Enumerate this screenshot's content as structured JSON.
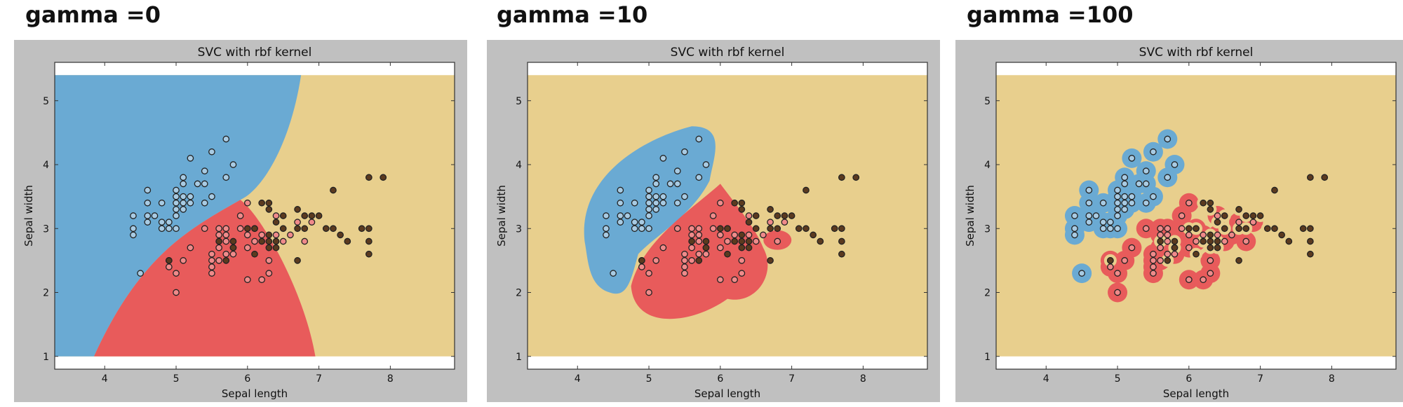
{
  "colors": {
    "panel_bg": "#c0c0c0",
    "class_setosa": "#6aaad3",
    "class_versicolor": "#e85b5b",
    "class_virginica": "#e8cf8d",
    "setosa_point": "#a8cbe3",
    "versicolor_point": "#ef8a8a",
    "virginica_point": "#5b3a1f",
    "point_edge": "#222222"
  },
  "headings": [
    "gamma =0",
    "gamma =10",
    "gamma =100"
  ],
  "chart_data": [
    {
      "type": "scatter",
      "title": "SVC with rbf kernel",
      "xlabel": "Sepal length",
      "ylabel": "Sepal width",
      "xlim": [
        3.3,
        8.9
      ],
      "ylim": [
        0.8,
        5.6
      ],
      "xticks": [
        4,
        5,
        6,
        7,
        8
      ],
      "yticks": [
        1,
        2,
        3,
        4,
        5
      ],
      "grid": false,
      "decision_regions": "smooth boundaries: setosa upper-left, versicolor lower-middle, virginica right",
      "series": [
        {
          "color": "#a8cbe3",
          "points": [
            [
              4.4,
              3.0
            ],
            [
              4.4,
              3.2
            ],
            [
              4.4,
              2.9
            ],
            [
              4.5,
              2.3
            ],
            [
              4.6,
              3.1
            ],
            [
              4.6,
              3.4
            ],
            [
              4.6,
              3.6
            ],
            [
              4.6,
              3.2
            ],
            [
              4.7,
              3.2
            ],
            [
              4.8,
              3.0
            ],
            [
              4.8,
              3.4
            ],
            [
              4.8,
              3.1
            ],
            [
              4.9,
              3.0
            ],
            [
              4.9,
              3.1
            ],
            [
              5.0,
              3.0
            ],
            [
              5.0,
              3.2
            ],
            [
              5.0,
              3.3
            ],
            [
              5.0,
              3.4
            ],
            [
              5.0,
              3.5
            ],
            [
              5.0,
              3.6
            ],
            [
              5.1,
              3.3
            ],
            [
              5.1,
              3.4
            ],
            [
              5.1,
              3.5
            ],
            [
              5.1,
              3.7
            ],
            [
              5.1,
              3.8
            ],
            [
              5.2,
              3.4
            ],
            [
              5.2,
              3.5
            ],
            [
              5.2,
              4.1
            ],
            [
              5.3,
              3.7
            ],
            [
              5.4,
              3.4
            ],
            [
              5.4,
              3.7
            ],
            [
              5.4,
              3.9
            ],
            [
              5.5,
              3.5
            ],
            [
              5.5,
              4.2
            ],
            [
              5.7,
              3.8
            ],
            [
              5.7,
              4.4
            ],
            [
              5.8,
              4.0
            ]
          ]
        },
        {
          "color": "#ef8a8a",
          "points": [
            [
              4.9,
              2.4
            ],
            [
              4.9,
              2.5
            ],
            [
              5.0,
              2.0
            ],
            [
              5.0,
              2.3
            ],
            [
              5.1,
              2.5
            ],
            [
              5.2,
              2.7
            ],
            [
              5.4,
              3.0
            ],
            [
              5.5,
              2.3
            ],
            [
              5.5,
              2.4
            ],
            [
              5.5,
              2.5
            ],
            [
              5.5,
              2.6
            ],
            [
              5.6,
              2.5
            ],
            [
              5.6,
              2.7
            ],
            [
              5.6,
              2.9
            ],
            [
              5.6,
              3.0
            ],
            [
              5.7,
              2.6
            ],
            [
              5.7,
              2.8
            ],
            [
              5.7,
              2.9
            ],
            [
              5.7,
              3.0
            ],
            [
              5.8,
              2.6
            ],
            [
              5.8,
              2.7
            ],
            [
              5.9,
              3.0
            ],
            [
              5.9,
              3.2
            ],
            [
              6.0,
              2.2
            ],
            [
              6.0,
              2.7
            ],
            [
              6.0,
              2.9
            ],
            [
              6.0,
              3.4
            ],
            [
              6.1,
              2.8
            ],
            [
              6.1,
              3.0
            ],
            [
              6.2,
              2.2
            ],
            [
              6.2,
              2.9
            ],
            [
              6.3,
              2.3
            ],
            [
              6.3,
              2.5
            ],
            [
              6.4,
              2.9
            ],
            [
              6.4,
              3.2
            ],
            [
              6.5,
              2.8
            ],
            [
              6.6,
              2.9
            ],
            [
              6.7,
              3.1
            ],
            [
              6.8,
              2.8
            ],
            [
              6.9,
              3.1
            ]
          ]
        },
        {
          "color": "#5b3a1f",
          "points": [
            [
              4.9,
              2.5
            ],
            [
              5.6,
              2.8
            ],
            [
              5.7,
              2.5
            ],
            [
              5.8,
              2.7
            ],
            [
              5.8,
              2.8
            ],
            [
              6.0,
              3.0
            ],
            [
              6.1,
              2.6
            ],
            [
              6.1,
              3.0
            ],
            [
              6.2,
              2.8
            ],
            [
              6.2,
              3.4
            ],
            [
              6.3,
              2.7
            ],
            [
              6.3,
              2.8
            ],
            [
              6.3,
              2.9
            ],
            [
              6.3,
              3.3
            ],
            [
              6.3,
              3.4
            ],
            [
              6.4,
              2.7
            ],
            [
              6.4,
              2.8
            ],
            [
              6.4,
              3.1
            ],
            [
              6.5,
              3.0
            ],
            [
              6.5,
              3.2
            ],
            [
              6.7,
              2.5
            ],
            [
              6.7,
              3.0
            ],
            [
              6.7,
              3.3
            ],
            [
              6.8,
              3.0
            ],
            [
              6.8,
              3.2
            ],
            [
              6.9,
              3.2
            ],
            [
              7.0,
              3.2
            ],
            [
              7.1,
              3.0
            ],
            [
              7.2,
              3.6
            ],
            [
              7.2,
              3.0
            ],
            [
              7.3,
              2.9
            ],
            [
              7.4,
              2.8
            ],
            [
              7.6,
              3.0
            ],
            [
              7.7,
              2.6
            ],
            [
              7.7,
              2.8
            ],
            [
              7.7,
              3.0
            ],
            [
              7.7,
              3.8
            ],
            [
              7.9,
              3.8
            ]
          ]
        }
      ]
    },
    {
      "type": "scatter",
      "title": "SVC with rbf kernel",
      "xlabel": "Sepal length",
      "ylabel": "Sepal width",
      "xlim": [
        3.3,
        8.9
      ],
      "ylim": [
        0.8,
        5.6
      ],
      "xticks": [
        4,
        5,
        6,
        7,
        8
      ],
      "yticks": [
        1,
        2,
        3,
        4,
        5
      ],
      "grid": false,
      "decision_regions": "blob-shaped: setosa upper-left blob, versicolor lower-middle blob, rest virginica",
      "series_ref": "same points as first chart"
    },
    {
      "type": "scatter",
      "title": "SVC with rbf kernel",
      "xlabel": "Sepal length",
      "ylabel": "Sepal width",
      "xlim": [
        3.3,
        8.9
      ],
      "ylim": [
        0.8,
        5.6
      ],
      "xticks": [
        4,
        5,
        6,
        7,
        8
      ],
      "yticks": [
        1,
        2,
        3,
        4,
        5
      ],
      "grid": false,
      "decision_regions": "tight islands around each training point",
      "series_ref": "same points as first chart"
    }
  ]
}
